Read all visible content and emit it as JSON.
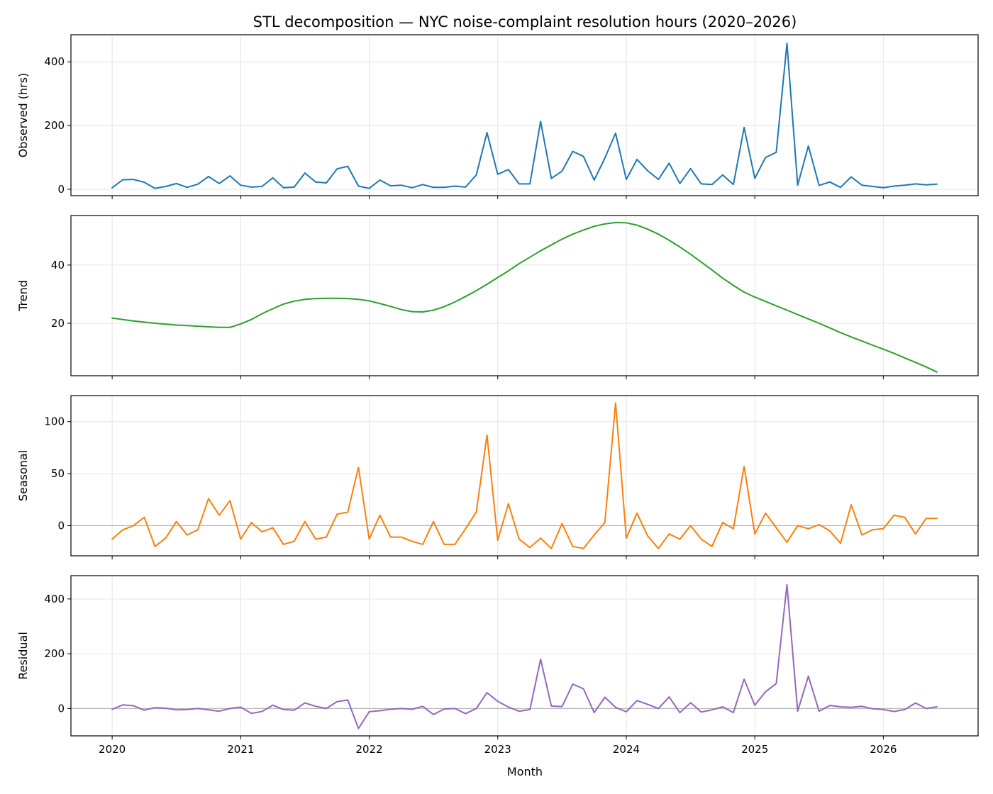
{
  "chart_data": {
    "type": "line",
    "title": "STL decomposition — NYC noise-complaint resolution hours (2020–2026)",
    "xlabel": "Month",
    "x_start": "2020-01",
    "x_ticks": [
      "2020",
      "2021",
      "2022",
      "2023",
      "2024",
      "2025",
      "2026"
    ],
    "grid": true,
    "panels": [
      {
        "name": "observed",
        "ylabel": "Observed (hrs)",
        "color": "#1f77b4",
        "ylim": [
          -20,
          485
        ],
        "yticks": [
          0,
          200,
          400
        ],
        "zero_line": false,
        "values": [
          5,
          30,
          31,
          22,
          3,
          9,
          18,
          6,
          16,
          40,
          18,
          42,
          13,
          7,
          9,
          36,
          5,
          7,
          51,
          23,
          20,
          64,
          72,
          10,
          3,
          29,
          11,
          13,
          5,
          15,
          6,
          6,
          10,
          7,
          45,
          178,
          47,
          62,
          17,
          17,
          213,
          34,
          57,
          119,
          103,
          29,
          98,
          176,
          31,
          94,
          58,
          31,
          82,
          18,
          65,
          17,
          15,
          45,
          15,
          194,
          34,
          100,
          116,
          458,
          13,
          136,
          12,
          23,
          6,
          39,
          13,
          9,
          5,
          10,
          13,
          17,
          14,
          16
        ]
      },
      {
        "name": "trend",
        "ylabel": "Trend",
        "color": "#2ca02c",
        "ylim": [
          2,
          57
        ],
        "yticks": [
          20,
          40
        ],
        "zero_line": false,
        "values": [
          21.8,
          21.3,
          20.8,
          20.4,
          20.0,
          19.7,
          19.4,
          19.2,
          19.0,
          18.8,
          18.6,
          18.6,
          19.8,
          21.3,
          23.3,
          25.0,
          26.6,
          27.6,
          28.2,
          28.5,
          28.6,
          28.6,
          28.5,
          28.2,
          27.7,
          26.8,
          25.8,
          24.7,
          24.0,
          23.9,
          24.5,
          25.7,
          27.3,
          29.2,
          31.2,
          33.4,
          35.7,
          38.0,
          40.5,
          42.7,
          44.9,
          46.9,
          48.9,
          50.6,
          52.0,
          53.3,
          54.1,
          54.6,
          54.5,
          53.7,
          52.3,
          50.6,
          48.5,
          46.2,
          43.7,
          41.0,
          38.3,
          35.5,
          33.0,
          30.7,
          29.0,
          27.5,
          26.0,
          24.5,
          23.0,
          21.5,
          20.0,
          18.4,
          16.8,
          15.3,
          13.9,
          12.5,
          11.1,
          9.7,
          8.1,
          6.6,
          5.0,
          3.3
        ]
      },
      {
        "name": "seasonal",
        "ylabel": "Seasonal",
        "color": "#ff7f0e",
        "ylim": [
          -29,
          125
        ],
        "yticks": [
          0,
          50,
          100
        ],
        "zero_line": true,
        "values": [
          -13,
          -4,
          0,
          8,
          -20,
          -12,
          4,
          -9,
          -4,
          26,
          10,
          24,
          -13,
          3,
          -6,
          -2,
          -18,
          -15,
          4,
          -13,
          -11,
          11,
          13,
          56,
          -13,
          10,
          -11,
          -11,
          -15,
          -18,
          4,
          -18,
          -18,
          -3,
          13,
          87,
          -14,
          21,
          -13,
          -21,
          -12,
          -22,
          2,
          -20,
          -22,
          -9,
          3,
          118,
          -12,
          12,
          -10,
          -22,
          -8,
          -13,
          0,
          -13,
          -20,
          3,
          -3,
          57,
          -8,
          12,
          -2,
          -16,
          0,
          -3,
          1,
          -5,
          -17,
          20,
          -9,
          -4,
          -3,
          10,
          8,
          -8,
          7,
          7
        ]
      },
      {
        "name": "residual",
        "ylabel": "Residual",
        "color": "#9467bd",
        "ylim": [
          -100,
          485
        ],
        "yticks": [
          0,
          200,
          400
        ],
        "zero_line": true,
        "values": [
          -3,
          13,
          10,
          -6,
          3,
          1,
          -5,
          -4,
          0,
          -5,
          -10,
          0,
          5,
          -18,
          -11,
          12,
          -4,
          -6,
          20,
          8,
          0,
          25,
          31,
          -73,
          -12,
          -8,
          -3,
          0,
          -3,
          8,
          -22,
          -2,
          0,
          -19,
          0,
          58,
          26,
          5,
          -10,
          -4,
          180,
          9,
          7,
          89,
          72,
          -15,
          41,
          4,
          -12,
          29,
          15,
          0,
          42,
          -15,
          21,
          -13,
          -5,
          6,
          -15,
          107,
          12,
          61,
          91,
          452,
          -10,
          118,
          -10,
          11,
          6,
          4,
          8,
          -1,
          -4,
          -11,
          -4,
          20,
          0,
          6
        ]
      }
    ]
  }
}
